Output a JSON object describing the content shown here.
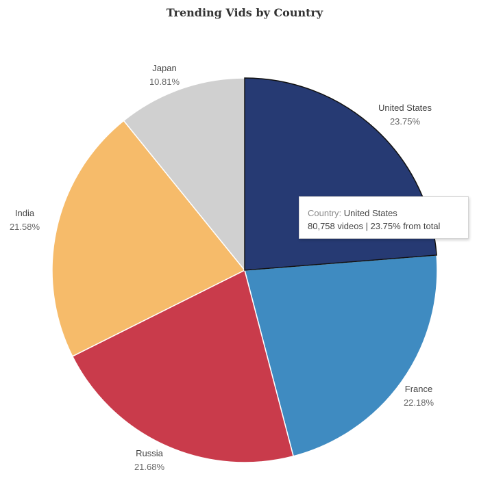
{
  "chart_data": {
    "type": "pie",
    "title": "Trending Vids by Country",
    "slices": [
      {
        "label": "United States",
        "value": 23.75,
        "value_text": "23.75%",
        "color": "#263A73"
      },
      {
        "label": "France",
        "value": 22.18,
        "value_text": "22.18%",
        "color": "#3F8BC1"
      },
      {
        "label": "Russia",
        "value": 21.68,
        "value_text": "21.68%",
        "color": "#C93B4B"
      },
      {
        "label": "India",
        "value": 21.58,
        "value_text": "21.58%",
        "color": "#F6BB6A"
      },
      {
        "label": "Japan",
        "value": 10.81,
        "value_text": "10.81%",
        "color": "#D0D0D0"
      }
    ]
  },
  "tooltip": {
    "key": "Country:",
    "value": "United States",
    "line2": "80,758 videos | 23.75% from total"
  }
}
